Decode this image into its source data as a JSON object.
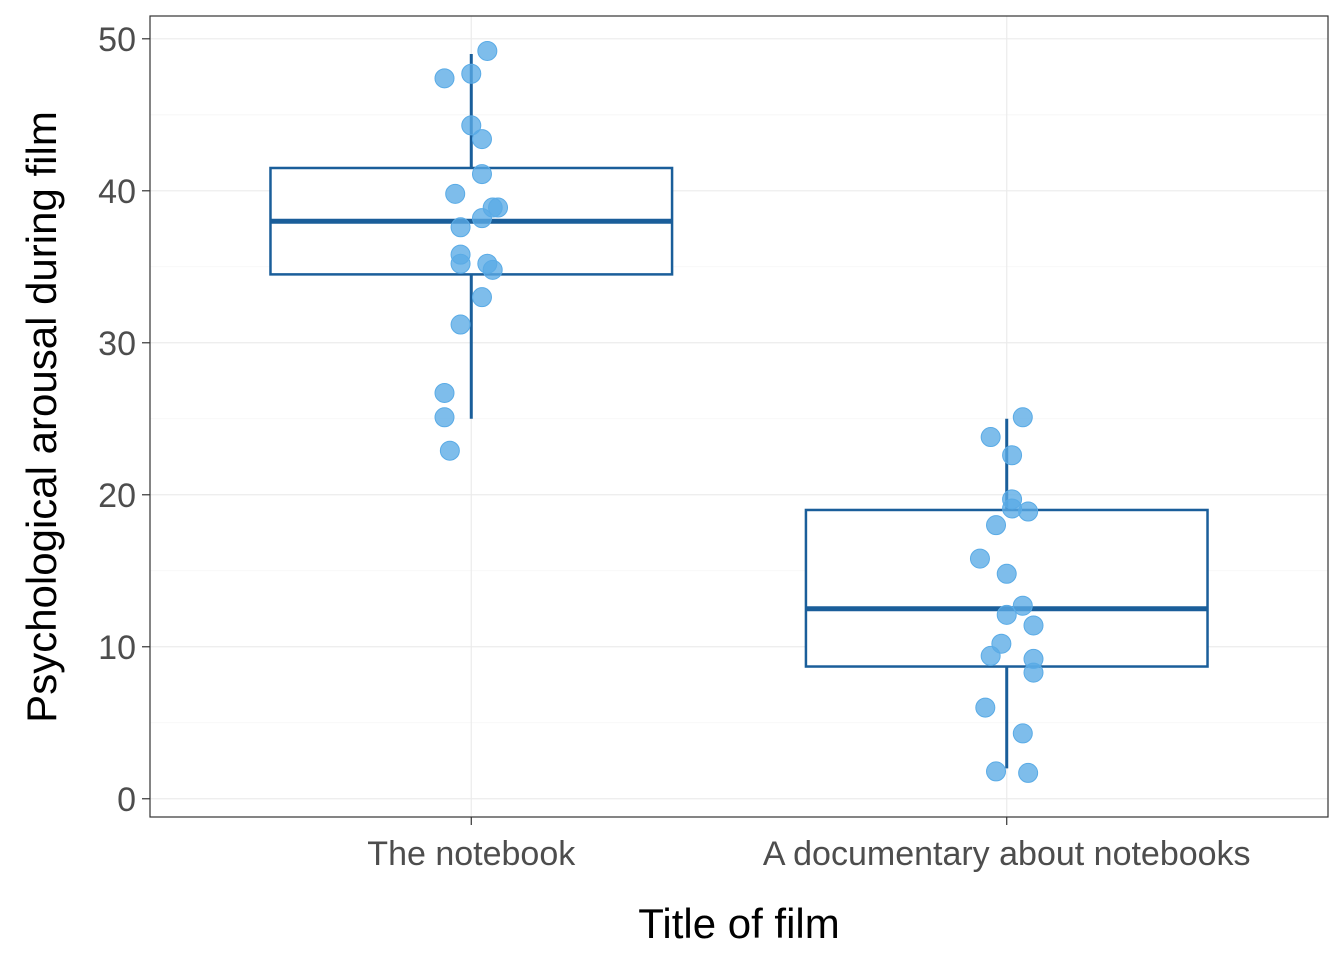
{
  "chart_data": {
    "type": "boxplot",
    "title": "",
    "xlabel": "Title of film",
    "ylabel": "Psychological arousal during film",
    "ylim": [
      -1.2,
      51.5
    ],
    "yticks": [
      0,
      10,
      20,
      30,
      40,
      50
    ],
    "grid": true,
    "colors": {
      "box": "#1a5e9a",
      "point": "#5aabe6"
    },
    "categories": [
      "The notebook",
      "A documentary about notebooks"
    ],
    "boxes": [
      {
        "category": "The notebook",
        "whisker_low": 25.0,
        "q1": 34.5,
        "median": 38.0,
        "q3": 41.5,
        "whisker_high": 49.0
      },
      {
        "category": "A documentary about notebooks",
        "whisker_low": 2.0,
        "q1": 8.7,
        "median": 12.5,
        "q3": 19.0,
        "whisker_high": 25.0
      }
    ],
    "points": [
      [
        {
          "jitter": 0.03,
          "y": 49.2
        },
        {
          "jitter": 0.0,
          "y": 47.7
        },
        {
          "jitter": -0.05,
          "y": 47.4
        },
        {
          "jitter": 0.0,
          "y": 44.3
        },
        {
          "jitter": 0.02,
          "y": 43.4
        },
        {
          "jitter": 0.02,
          "y": 41.1
        },
        {
          "jitter": -0.03,
          "y": 39.8
        },
        {
          "jitter": 0.04,
          "y": 38.9
        },
        {
          "jitter": 0.05,
          "y": 38.9
        },
        {
          "jitter": 0.02,
          "y": 38.2
        },
        {
          "jitter": -0.02,
          "y": 37.6
        },
        {
          "jitter": -0.02,
          "y": 35.8
        },
        {
          "jitter": -0.02,
          "y": 35.2
        },
        {
          "jitter": 0.03,
          "y": 35.2
        },
        {
          "jitter": 0.04,
          "y": 34.8
        },
        {
          "jitter": 0.02,
          "y": 33.0
        },
        {
          "jitter": -0.02,
          "y": 31.2
        },
        {
          "jitter": -0.05,
          "y": 26.7
        },
        {
          "jitter": -0.05,
          "y": 25.1
        },
        {
          "jitter": -0.04,
          "y": 22.9
        }
      ],
      [
        {
          "jitter": 0.03,
          "y": 25.1
        },
        {
          "jitter": -0.03,
          "y": 23.8
        },
        {
          "jitter": 0.01,
          "y": 22.6
        },
        {
          "jitter": 0.01,
          "y": 19.7
        },
        {
          "jitter": 0.01,
          "y": 19.1
        },
        {
          "jitter": 0.04,
          "y": 18.9
        },
        {
          "jitter": -0.02,
          "y": 18.0
        },
        {
          "jitter": -0.05,
          "y": 15.8
        },
        {
          "jitter": 0.0,
          "y": 14.8
        },
        {
          "jitter": 0.03,
          "y": 12.7
        },
        {
          "jitter": 0.0,
          "y": 12.1
        },
        {
          "jitter": 0.05,
          "y": 11.4
        },
        {
          "jitter": -0.01,
          "y": 10.2
        },
        {
          "jitter": -0.03,
          "y": 9.4
        },
        {
          "jitter": 0.05,
          "y": 9.2
        },
        {
          "jitter": 0.05,
          "y": 8.3
        },
        {
          "jitter": -0.04,
          "y": 6.0
        },
        {
          "jitter": 0.03,
          "y": 4.3
        },
        {
          "jitter": -0.02,
          "y": 1.8
        },
        {
          "jitter": 0.04,
          "y": 1.7
        }
      ]
    ]
  }
}
